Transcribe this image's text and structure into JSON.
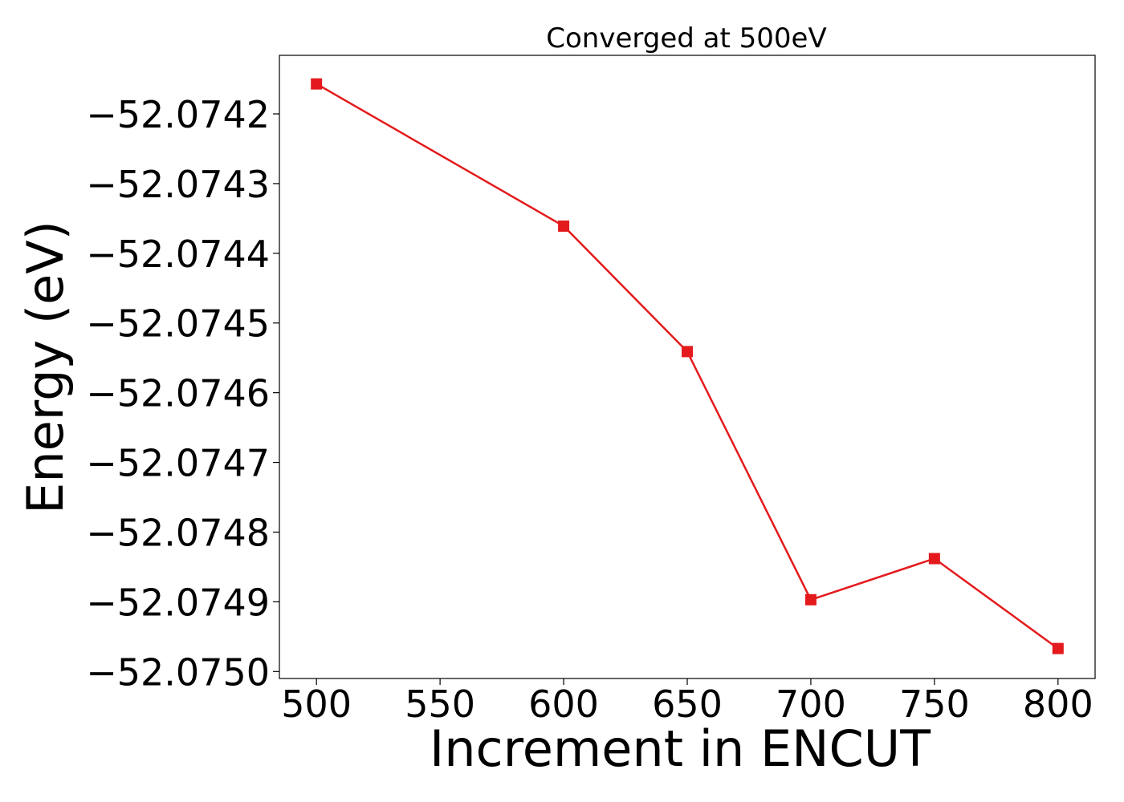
{
  "chart_data": {
    "type": "line",
    "title": "Converged at 500eV",
    "xlabel": "Increment in ENCUT",
    "ylabel": "Energy (eV)",
    "x": [
      500,
      600,
      650,
      700,
      750,
      800
    ],
    "series": [
      {
        "values": [
          -52.074157,
          -52.074361,
          -52.074541,
          -52.074897,
          -52.074838,
          -52.074967
        ],
        "color": "#e41a1c",
        "marker": "square"
      }
    ],
    "xlim": [
      485,
      815
    ],
    "ylim": [
      -52.07501,
      -52.074116
    ],
    "xticks": [
      500,
      550,
      600,
      650,
      700,
      750,
      800
    ],
    "xtick_labels": [
      "500",
      "550",
      "600",
      "650",
      "700",
      "750",
      "800"
    ],
    "yticks": [
      -52.0742,
      -52.0743,
      -52.0744,
      -52.0745,
      -52.0746,
      -52.0747,
      -52.0748,
      -52.0749,
      -52.075
    ],
    "ytick_labels": [
      "−52.0742",
      "−52.0743",
      "−52.0744",
      "−52.0745",
      "−52.0746",
      "−52.0747",
      "−52.0748",
      "−52.0749",
      "−52.0750"
    ],
    "grid": false,
    "legend": "none"
  }
}
